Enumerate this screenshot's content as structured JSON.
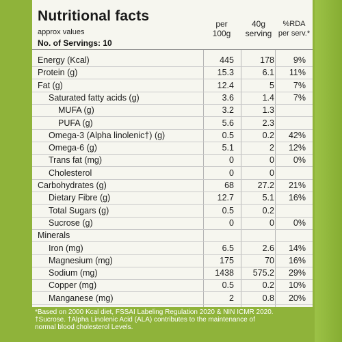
{
  "header": {
    "title": "Nutritional facts",
    "approx": "approx values",
    "servings": "No. of Servings: 10",
    "col1_top": "per",
    "col1_bot": "100g",
    "col2_top": "40g",
    "col2_bot": "serving",
    "col3_top": "%RDA",
    "col3_bot": "per serv.*"
  },
  "rows": [
    {
      "label": "Energy (Kcal)",
      "per100": "445",
      "serving": "178",
      "rda": "9%"
    },
    {
      "label": "Protein (g)",
      "per100": "15.3",
      "serving": "6.1",
      "rda": "11%"
    },
    {
      "label": "Fat (g)",
      "per100": "12.4",
      "serving": "5",
      "rda": "7%"
    },
    {
      "label": "Saturated fatty acids (g)",
      "per100": "3.6",
      "serving": "1.4",
      "rda": "7%"
    },
    {
      "label": "MUFA (g)",
      "per100": "3.2",
      "serving": "1.3",
      "rda": ""
    },
    {
      "label": "PUFA (g)",
      "per100": "5.6",
      "serving": "2.3",
      "rda": ""
    },
    {
      "label": "Omega-3 (Alpha linolenic†) (g)",
      "per100": "0.5",
      "serving": "0.2",
      "rda": "42%"
    },
    {
      "label": "Omega-6 (g)",
      "per100": "5.1",
      "serving": "2",
      "rda": "12%"
    },
    {
      "label": "Trans fat  (mg)",
      "per100": "0",
      "serving": "0",
      "rda": "0%"
    },
    {
      "label": "Cholesterol",
      "per100": "0",
      "serving": "0",
      "rda": ""
    },
    {
      "label": "Carbohydrates (g)",
      "per100": "68",
      "serving": "27.2",
      "rda": "21%"
    },
    {
      "label": "Dietary Fibre (g)",
      "per100": "12.7",
      "serving": "5.1",
      "rda": "16%"
    },
    {
      "label": "Total Sugars (g)",
      "per100": "0.5",
      "serving": "0.2",
      "rda": ""
    },
    {
      "label": "Sucrose (g)",
      "per100": "0",
      "serving": "0",
      "rda": "0%"
    },
    {
      "label": "Minerals",
      "per100": "",
      "serving": "",
      "rda": ""
    },
    {
      "label": "Iron (mg)",
      "per100": "6.5",
      "serving": "2.6",
      "rda": "14%"
    },
    {
      "label": "Magnesium (mg)",
      "per100": "175",
      "serving": "70",
      "rda": "16%"
    },
    {
      "label": "Sodium (mg)",
      "per100": "1438",
      "serving": "575.2",
      "rda": "29%"
    },
    {
      "label": "Copper (mg)",
      "per100": "0.5",
      "serving": "0.2",
      "rda": "10%"
    },
    {
      "label": "Manganese (mg)",
      "per100": "2",
      "serving": "0.8",
      "rda": "20%"
    }
  ],
  "footnote": {
    "line1": "*Based on 2000 Kcal diet, FSSAI Labeling Regulation 2020 & NIN ICMR 2020.",
    "line2": "†Sucrose. †Alpha Linolenic Acid (ALA) contributes to the maintenance of",
    "line3": "normal blood cholesterol Levels."
  },
  "colors": {
    "background": "#8fb33a",
    "panel": "#f6f6ef",
    "text": "#1a1a1a"
  }
}
